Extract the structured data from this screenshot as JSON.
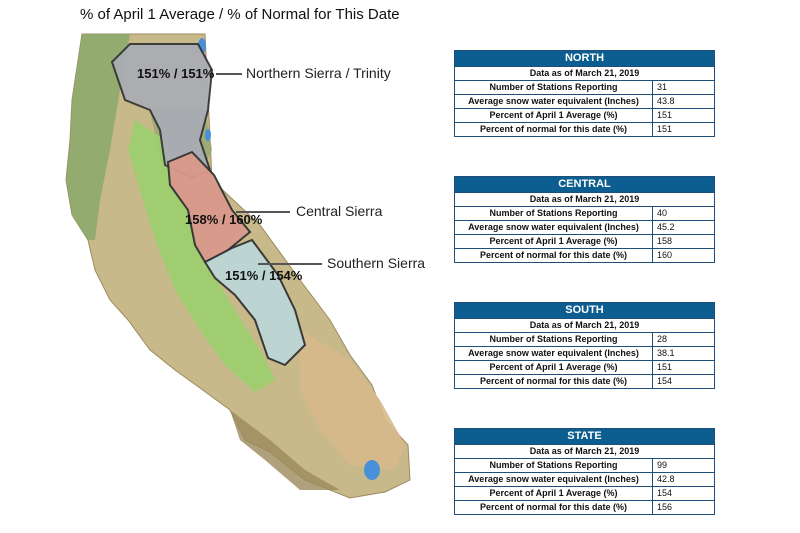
{
  "page": {
    "title": "% of April 1 Average / % of Normal for This Date"
  },
  "map": {
    "regions": [
      {
        "name": "Northern Sierra / Trinity",
        "label": "151% / 151%",
        "color": "#a9adb5"
      },
      {
        "name": "Central Sierra",
        "label": "158% / 160%",
        "color": "#d99a8c"
      },
      {
        "name": "Southern Sierra",
        "label": "151% / 154%",
        "color": "#bcd6d6"
      }
    ]
  },
  "tables": [
    {
      "header": "NORTH",
      "as_of": "Data as of March 21, 2019",
      "rows": [
        {
          "label": "Number of Stations Reporting",
          "value": "31"
        },
        {
          "label": "Average snow water equivalent (Inches)",
          "value": "43.8"
        },
        {
          "label": "Percent of April 1 Average (%)",
          "value": "151"
        },
        {
          "label": "Percent of normal for this date (%)",
          "value": "151"
        }
      ]
    },
    {
      "header": "CENTRAL",
      "as_of": "Data as of March 21, 2019",
      "rows": [
        {
          "label": "Number of Stations Reporting",
          "value": "40"
        },
        {
          "label": "Average snow water equivalent (Inches)",
          "value": "45.2"
        },
        {
          "label": "Percent of April 1 Average (%)",
          "value": "158"
        },
        {
          "label": "Percent of normal for this date (%)",
          "value": "160"
        }
      ]
    },
    {
      "header": "SOUTH",
      "as_of": "Data as of March 21, 2019",
      "rows": [
        {
          "label": "Number of Stations Reporting",
          "value": "28"
        },
        {
          "label": "Average snow water equivalent (Inches)",
          "value": "38.1"
        },
        {
          "label": "Percent of April 1 Average (%)",
          "value": "151"
        },
        {
          "label": "Percent of normal for this date (%)",
          "value": "154"
        }
      ]
    },
    {
      "header": "STATE",
      "as_of": "Data as of March 21, 2019",
      "rows": [
        {
          "label": "Number of Stations Reporting",
          "value": "99"
        },
        {
          "label": "Average snow water equivalent (Inches)",
          "value": "42.8"
        },
        {
          "label": "Percent of April 1 Average (%)",
          "value": "154"
        },
        {
          "label": "Percent of normal for this date (%)",
          "value": "156"
        }
      ]
    }
  ]
}
